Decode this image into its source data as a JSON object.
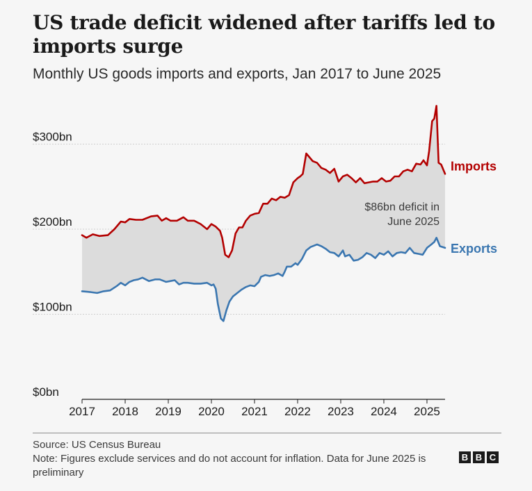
{
  "header": {
    "title": "US trade deficit widened after tariffs led to imports surge",
    "subtitle": "Monthly US goods imports and exports, Jan 2017 to June 2025"
  },
  "footer": {
    "source": "Source: US Census Bureau",
    "note": "Note: Figures exclude services and do not account for inflation. Data for June 2025 is preliminary",
    "logo": [
      "B",
      "B",
      "C"
    ]
  },
  "chart_data": {
    "type": "line",
    "title": "US trade deficit widened after tariffs led to imports surge",
    "subtitle": "Monthly US goods imports and exports, Jan 2017 to June 2025",
    "xlabel": "",
    "ylabel": "",
    "x_unit": "decimal year",
    "xlim": [
      2017.0,
      2025.42
    ],
    "ylim": [
      0,
      350
    ],
    "yticks": [
      0,
      100,
      200,
      300
    ],
    "ytick_labels": [
      "$0bn",
      "$100bn",
      "$200bn",
      "$300bn"
    ],
    "xticks": [
      2017,
      2018,
      2019,
      2020,
      2021,
      2022,
      2023,
      2024,
      2025
    ],
    "xtick_labels": [
      "2017",
      "2018",
      "2019",
      "2020",
      "2021",
      "2022",
      "2023",
      "2024",
      "2025"
    ],
    "grid": true,
    "fill_between": {
      "upper": "Imports",
      "lower": "Exports",
      "color": "#dcdcdc"
    },
    "annotation": {
      "lines": [
        "$86bn deficit in",
        "June 2025"
      ],
      "x": 2025.0,
      "y": 222
    },
    "series": [
      {
        "name": "Imports",
        "color": "#b30000",
        "x": [
          2017.0,
          2017.1,
          2017.25,
          2017.4,
          2017.6,
          2017.75,
          2017.9,
          2018.0,
          2018.1,
          2018.25,
          2018.4,
          2018.6,
          2018.75,
          2018.85,
          2018.95,
          2019.05,
          2019.2,
          2019.35,
          2019.45,
          2019.6,
          2019.75,
          2019.9,
          2020.0,
          2020.1,
          2020.2,
          2020.25,
          2020.32,
          2020.4,
          2020.48,
          2020.56,
          2020.64,
          2020.72,
          2020.8,
          2020.9,
          2021.0,
          2021.1,
          2021.2,
          2021.3,
          2021.4,
          2021.5,
          2021.6,
          2021.7,
          2021.8,
          2021.9,
          2022.0,
          2022.06,
          2022.12,
          2022.2,
          2022.35,
          2022.45,
          2022.55,
          2022.65,
          2022.75,
          2022.85,
          2022.95,
          2023.05,
          2023.15,
          2023.25,
          2023.35,
          2023.45,
          2023.55,
          2023.65,
          2023.75,
          2023.85,
          2023.95,
          2024.05,
          2024.15,
          2024.25,
          2024.35,
          2024.45,
          2024.55,
          2024.65,
          2024.75,
          2024.85,
          2024.92,
          2025.0,
          2025.05,
          2025.12,
          2025.17,
          2025.22,
          2025.27,
          2025.33,
          2025.42
        ],
        "values": [
          193,
          190,
          194,
          192,
          193,
          200,
          209,
          208,
          212,
          211,
          211,
          215,
          216,
          210,
          213,
          210,
          210,
          214,
          210,
          210,
          206,
          200,
          206,
          203,
          198,
          190,
          170,
          167,
          175,
          195,
          202,
          202,
          210,
          216,
          218,
          219,
          230,
          230,
          236,
          234,
          238,
          237,
          240,
          255,
          260,
          262,
          265,
          289,
          280,
          278,
          272,
          270,
          266,
          271,
          256,
          262,
          264,
          260,
          255,
          260,
          254,
          255,
          256,
          256,
          260,
          256,
          257,
          262,
          262,
          268,
          270,
          268,
          277,
          276,
          281,
          275,
          292,
          327,
          330,
          345,
          278,
          276,
          265
        ]
      },
      {
        "name": "Exports",
        "color": "#3a76b0",
        "x": [
          2017.0,
          2017.2,
          2017.35,
          2017.5,
          2017.65,
          2017.8,
          2017.9,
          2018.0,
          2018.1,
          2018.2,
          2018.3,
          2018.4,
          2018.55,
          2018.7,
          2018.8,
          2018.95,
          2019.05,
          2019.15,
          2019.25,
          2019.35,
          2019.45,
          2019.6,
          2019.75,
          2019.9,
          2020.0,
          2020.05,
          2020.1,
          2020.15,
          2020.22,
          2020.28,
          2020.35,
          2020.42,
          2020.5,
          2020.6,
          2020.7,
          2020.8,
          2020.9,
          2021.0,
          2021.1,
          2021.15,
          2021.25,
          2021.35,
          2021.45,
          2021.55,
          2021.65,
          2021.7,
          2021.75,
          2021.85,
          2021.95,
          2022.0,
          2022.1,
          2022.2,
          2022.3,
          2022.45,
          2022.55,
          2022.65,
          2022.75,
          2022.85,
          2022.95,
          2023.05,
          2023.1,
          2023.2,
          2023.3,
          2023.4,
          2023.5,
          2023.6,
          2023.7,
          2023.8,
          2023.9,
          2024.0,
          2024.1,
          2024.2,
          2024.3,
          2024.4,
          2024.5,
          2024.6,
          2024.7,
          2024.8,
          2024.9,
          2025.0,
          2025.1,
          2025.17,
          2025.22,
          2025.3,
          2025.42
        ],
        "values": [
          127,
          126,
          125,
          127,
          128,
          133,
          137,
          134,
          138,
          140,
          141,
          143,
          139,
          141,
          141,
          138,
          139,
          140,
          135,
          137,
          137,
          136,
          136,
          137,
          134,
          135,
          130,
          112,
          95,
          92,
          105,
          115,
          121,
          125,
          129,
          132,
          134,
          133,
          138,
          144,
          146,
          145,
          146,
          148,
          145,
          150,
          156,
          156,
          160,
          158,
          165,
          175,
          179,
          182,
          180,
          177,
          173,
          172,
          168,
          175,
          168,
          170,
          163,
          164,
          167,
          172,
          170,
          166,
          172,
          170,
          174,
          168,
          172,
          173,
          172,
          178,
          172,
          171,
          170,
          178,
          182,
          185,
          190,
          180,
          178
        ]
      }
    ]
  }
}
